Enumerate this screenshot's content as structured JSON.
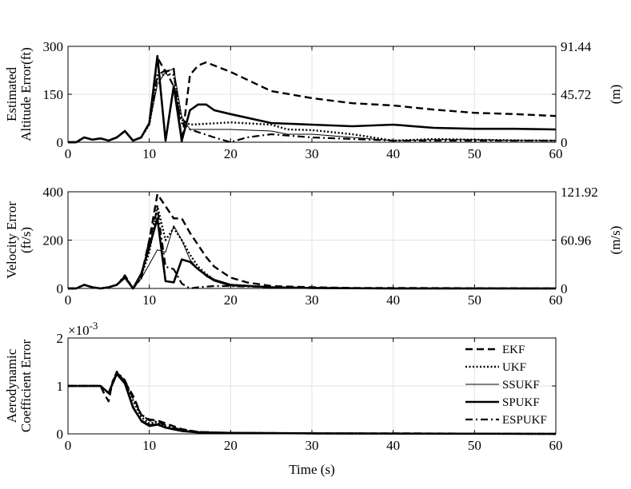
{
  "figure": {
    "xlabel": "Time (s)"
  },
  "chart_data": [
    {
      "type": "line",
      "ylabel_lines": [
        "Estimated",
        "Altitude Error(ft)"
      ],
      "y2label": "(m)",
      "xlim": [
        0,
        60
      ],
      "ylim": [
        0,
        300
      ],
      "xticks": [
        "0",
        "10",
        "20",
        "30",
        "40",
        "50",
        "60"
      ],
      "yticks": [
        "0",
        "150",
        "300"
      ],
      "y2ticks": [
        "0",
        "45.72",
        "91.44"
      ],
      "grid": true,
      "series": [
        {
          "name": "EKF",
          "style": "dashed",
          "x": [
            0,
            1,
            2,
            3,
            4,
            5,
            6,
            7,
            8,
            9,
            10,
            11,
            12,
            13,
            14,
            15,
            16,
            17,
            20,
            25,
            30,
            35,
            40,
            45,
            50,
            55,
            60
          ],
          "y": [
            0,
            0,
            15,
            8,
            12,
            5,
            15,
            35,
            5,
            15,
            60,
            265,
            220,
            230,
            0,
            210,
            240,
            250,
            220,
            160,
            138,
            122,
            115,
            102,
            92,
            88,
            82
          ]
        },
        {
          "name": "UKF",
          "style": "dotted",
          "x": [
            0,
            1,
            2,
            3,
            4,
            5,
            6,
            7,
            8,
            9,
            10,
            11,
            12,
            13,
            14,
            15,
            20,
            25,
            27,
            30,
            35,
            40,
            45,
            50,
            55,
            60
          ],
          "y": [
            0,
            0,
            15,
            8,
            12,
            5,
            15,
            35,
            5,
            15,
            55,
            200,
            215,
            210,
            70,
            55,
            62,
            55,
            40,
            38,
            25,
            5,
            10,
            8,
            6,
            5
          ]
        },
        {
          "name": "SSUKF",
          "style": "thin",
          "x": [
            0,
            1,
            2,
            3,
            4,
            5,
            6,
            7,
            8,
            9,
            10,
            11,
            12,
            13,
            14,
            15,
            20,
            25,
            27,
            30,
            35,
            40,
            45,
            50,
            55,
            60
          ],
          "y": [
            0,
            0,
            15,
            8,
            12,
            5,
            15,
            35,
            5,
            15,
            55,
            180,
            220,
            230,
            80,
            40,
            40,
            35,
            25,
            25,
            15,
            5,
            8,
            8,
            6,
            5
          ]
        },
        {
          "name": "SPUKF",
          "style": "thick",
          "x": [
            0,
            1,
            2,
            3,
            4,
            5,
            6,
            7,
            8,
            9,
            10,
            11,
            12,
            13,
            14,
            15,
            16,
            17,
            18,
            20,
            25,
            30,
            35,
            40,
            45,
            50,
            55,
            60
          ],
          "y": [
            0,
            0,
            15,
            8,
            12,
            5,
            15,
            35,
            5,
            15,
            60,
            270,
            5,
            175,
            5,
            100,
            118,
            118,
            100,
            88,
            60,
            55,
            50,
            55,
            45,
            42,
            42,
            40
          ]
        },
        {
          "name": "ESPUKF",
          "style": "dashdot",
          "x": [
            0,
            1,
            2,
            3,
            4,
            5,
            6,
            7,
            8,
            9,
            10,
            11,
            12,
            13,
            14,
            15,
            18,
            20,
            22,
            25,
            30,
            35,
            40,
            45,
            50,
            55,
            60
          ],
          "y": [
            0,
            0,
            15,
            8,
            12,
            5,
            15,
            35,
            5,
            15,
            60,
            210,
            225,
            175,
            60,
            40,
            15,
            0,
            15,
            25,
            15,
            10,
            5,
            5,
            5,
            5,
            5
          ]
        }
      ]
    },
    {
      "type": "line",
      "ylabel_lines": [
        "Velocity Error",
        "(ft/s)"
      ],
      "y2label": "(m/s)",
      "xlim": [
        0,
        60
      ],
      "ylim": [
        0,
        400
      ],
      "xticks": [
        "0",
        "10",
        "20",
        "30",
        "40",
        "50",
        "60"
      ],
      "yticks": [
        "0",
        "200",
        "400"
      ],
      "y2ticks": [
        "0",
        "60.96",
        "121.92"
      ],
      "grid": true,
      "series": [
        {
          "name": "EKF",
          "style": "dashed",
          "x": [
            0,
            1,
            2,
            3,
            4,
            5,
            6,
            7,
            8,
            9,
            10,
            11,
            12,
            13,
            14,
            15,
            16,
            17,
            18,
            20,
            22,
            25,
            30,
            35,
            40,
            50,
            60
          ],
          "y": [
            0,
            0,
            15,
            5,
            0,
            5,
            15,
            50,
            0,
            50,
            200,
            390,
            340,
            290,
            290,
            230,
            180,
            130,
            90,
            45,
            25,
            10,
            5,
            2,
            2,
            1,
            0
          ]
        },
        {
          "name": "UKF",
          "style": "dotted",
          "x": [
            0,
            1,
            2,
            3,
            4,
            5,
            6,
            7,
            8,
            9,
            10,
            11,
            12,
            13,
            14,
            15,
            16,
            17,
            18,
            20,
            25,
            30,
            40,
            60
          ],
          "y": [
            0,
            0,
            15,
            5,
            0,
            5,
            15,
            50,
            0,
            50,
            150,
            340,
            200,
            250,
            200,
            140,
            90,
            60,
            35,
            15,
            5,
            2,
            0,
            0
          ]
        },
        {
          "name": "SSUKF",
          "style": "thin",
          "x": [
            0,
            1,
            2,
            3,
            4,
            5,
            6,
            7,
            8,
            9,
            10,
            11,
            12,
            13,
            14,
            15,
            16,
            17,
            18,
            20,
            25,
            30,
            40,
            60
          ],
          "y": [
            0,
            0,
            15,
            5,
            0,
            5,
            15,
            45,
            0,
            40,
            100,
            160,
            150,
            260,
            200,
            120,
            80,
            50,
            30,
            10,
            5,
            2,
            0,
            0
          ]
        },
        {
          "name": "SPUKF",
          "style": "thick",
          "x": [
            0,
            1,
            2,
            3,
            4,
            5,
            6,
            7,
            8,
            9,
            10,
            11,
            12,
            13,
            14,
            15,
            16,
            17,
            18,
            20,
            25,
            30,
            40,
            60
          ],
          "y": [
            0,
            0,
            15,
            5,
            0,
            5,
            15,
            45,
            0,
            60,
            170,
            290,
            30,
            25,
            120,
            110,
            80,
            55,
            35,
            15,
            5,
            2,
            0,
            0
          ]
        },
        {
          "name": "ESPUKF",
          "style": "dashdot",
          "x": [
            0,
            1,
            2,
            3,
            4,
            5,
            6,
            7,
            8,
            9,
            10,
            11,
            12,
            13,
            14,
            15,
            16,
            18,
            20,
            25,
            30,
            40,
            60
          ],
          "y": [
            0,
            0,
            15,
            5,
            0,
            5,
            15,
            55,
            0,
            40,
            200,
            330,
            90,
            80,
            20,
            0,
            5,
            10,
            10,
            5,
            2,
            0,
            0
          ]
        }
      ]
    },
    {
      "type": "line",
      "ylabel_lines": [
        "Aerodynamic",
        "Coefficient Error"
      ],
      "multiplier": "×10",
      "multiplier_exp": "-3",
      "xlim": [
        0,
        60
      ],
      "ylim": [
        0,
        2
      ],
      "xticks": [
        "0",
        "10",
        "20",
        "30",
        "40",
        "50",
        "60"
      ],
      "yticks": [
        "0",
        "1",
        "2"
      ],
      "grid": true,
      "legend": {
        "position": "top-right",
        "entries": [
          "EKF",
          "UKF",
          "SSUKF",
          "SPUKF",
          "ESPUKF"
        ]
      },
      "series": [
        {
          "name": "EKF",
          "style": "dashed",
          "x": [
            0,
            1,
            2,
            3,
            4,
            4.5,
            5,
            5.5,
            6,
            7,
            8,
            9,
            10,
            11,
            12,
            14,
            16,
            20,
            30,
            40,
            60
          ],
          "y": [
            1.0,
            1.0,
            1.0,
            1.0,
            1.0,
            0.82,
            0.68,
            1.1,
            1.25,
            1.08,
            0.8,
            0.4,
            0.3,
            0.28,
            0.22,
            0.1,
            0.04,
            0.02,
            0.01,
            0.01,
            0.0
          ]
        },
        {
          "name": "UKF",
          "style": "dotted",
          "x": [
            0,
            1,
            2,
            3,
            4,
            5,
            6,
            7,
            8,
            9,
            10,
            11,
            12,
            14,
            16,
            20,
            30,
            60
          ],
          "y": [
            1.0,
            1.0,
            1.0,
            1.0,
            1.0,
            0.85,
            1.28,
            1.1,
            0.7,
            0.35,
            0.22,
            0.25,
            0.15,
            0.08,
            0.04,
            0.02,
            0.01,
            0.0
          ]
        },
        {
          "name": "SSUKF",
          "style": "thin",
          "x": [
            0,
            1,
            2,
            3,
            4,
            5,
            6,
            7,
            8,
            9,
            10,
            11,
            12,
            14,
            16,
            20,
            30,
            60
          ],
          "y": [
            1.0,
            1.0,
            1.0,
            1.0,
            1.0,
            0.85,
            1.3,
            1.1,
            0.6,
            0.25,
            0.15,
            0.18,
            0.12,
            0.06,
            0.03,
            0.02,
            0.01,
            0.0
          ]
        },
        {
          "name": "SPUKF",
          "style": "thick",
          "x": [
            0,
            1,
            2,
            3,
            4,
            5,
            6,
            7,
            8,
            9,
            10,
            11,
            12,
            14,
            16,
            20,
            30,
            60
          ],
          "y": [
            1.0,
            1.0,
            1.0,
            1.0,
            1.0,
            0.85,
            1.25,
            1.05,
            0.55,
            0.28,
            0.18,
            0.2,
            0.13,
            0.06,
            0.03,
            0.02,
            0.01,
            0.0
          ]
        },
        {
          "name": "ESPUKF",
          "style": "dashdot",
          "x": [
            0,
            1,
            2,
            3,
            4,
            5,
            6,
            7,
            8,
            9,
            10,
            11,
            12,
            14,
            16,
            20,
            30,
            60
          ],
          "y": [
            1.0,
            1.0,
            1.0,
            1.0,
            1.0,
            0.85,
            1.3,
            1.12,
            0.75,
            0.4,
            0.28,
            0.25,
            0.18,
            0.08,
            0.04,
            0.02,
            0.01,
            0.0
          ]
        }
      ]
    }
  ]
}
